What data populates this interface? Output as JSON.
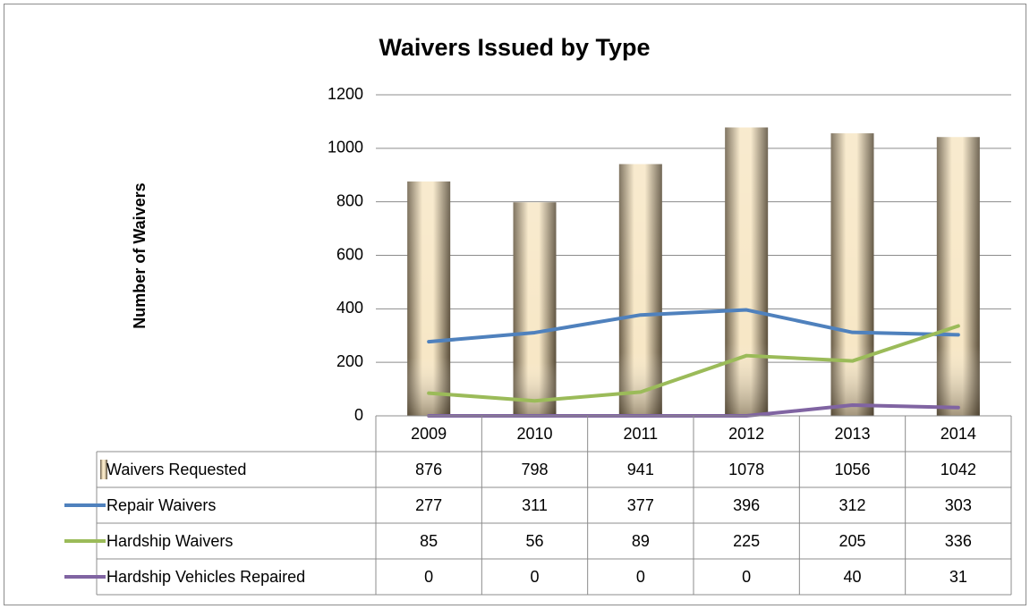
{
  "chart_data": {
    "type": "bar_line_table",
    "title": "Waivers Issued by Type",
    "y_label": "Number of Waivers",
    "categories": [
      "2009",
      "2010",
      "2011",
      "2012",
      "2013",
      "2014"
    ],
    "series": [
      {
        "name": "Waivers Requested",
        "type": "bar",
        "color": "#f7e7c6",
        "values": [
          876,
          798,
          941,
          1078,
          1056,
          1042
        ]
      },
      {
        "name": "Repair Waivers",
        "type": "line",
        "color": "#4f81bd",
        "values": [
          277,
          311,
          377,
          396,
          312,
          303
        ]
      },
      {
        "name": "Hardship Waivers",
        "type": "line",
        "color": "#9bbb59",
        "values": [
          85,
          56,
          89,
          225,
          205,
          336
        ]
      },
      {
        "name": "Hardship Vehicles Repaired",
        "type": "line",
        "color": "#8064a2",
        "values": [
          0,
          0,
          0,
          0,
          40,
          31
        ]
      }
    ],
    "ylim": [
      0,
      1200
    ],
    "yticks": [
      0,
      200,
      400,
      600,
      800,
      1000,
      1200
    ],
    "grid": true
  }
}
